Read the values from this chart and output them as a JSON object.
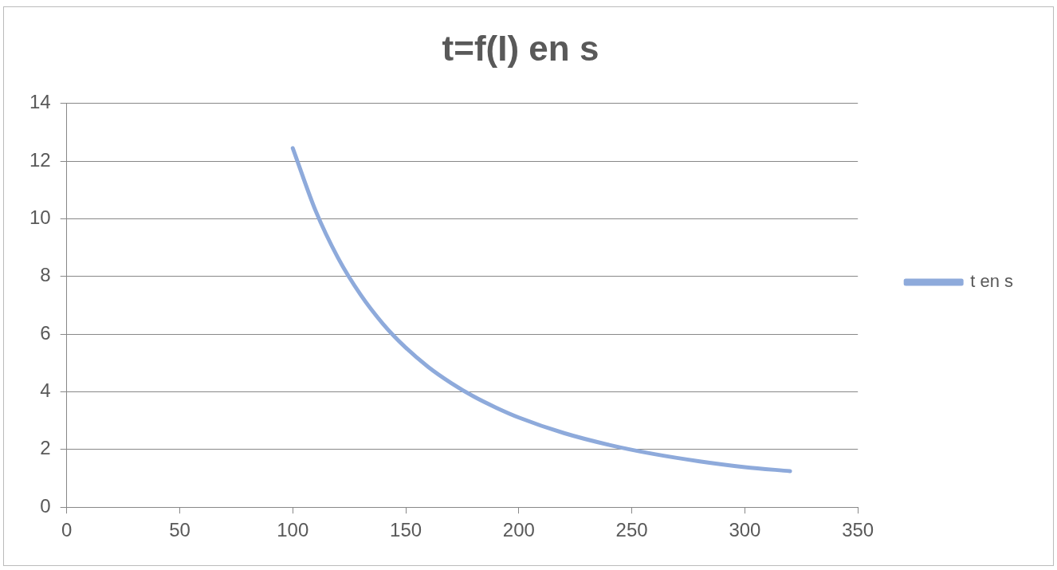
{
  "chart_data": {
    "type": "line",
    "title": "t=f(I) en s",
    "x": [
      100,
      110,
      120,
      130,
      140,
      150,
      160,
      170,
      180,
      190,
      200,
      220,
      240,
      260,
      280,
      300,
      320
    ],
    "series": [
      {
        "name": "t en s",
        "color": "#8eaadb",
        "values": [
          12.45,
          10.3,
          8.65,
          7.37,
          6.35,
          5.53,
          4.86,
          4.31,
          3.84,
          3.45,
          3.11,
          2.57,
          2.16,
          1.84,
          1.59,
          1.39,
          1.25
        ]
      }
    ],
    "xlim": [
      0,
      350
    ],
    "xticks": [
      0,
      50,
      100,
      150,
      200,
      250,
      300,
      350
    ],
    "ylim": [
      0,
      14
    ],
    "yticks": [
      0,
      2,
      4,
      6,
      8,
      10,
      12,
      14
    ],
    "grid": "y",
    "legend": "right",
    "marker": "none",
    "line_style": "solid"
  }
}
